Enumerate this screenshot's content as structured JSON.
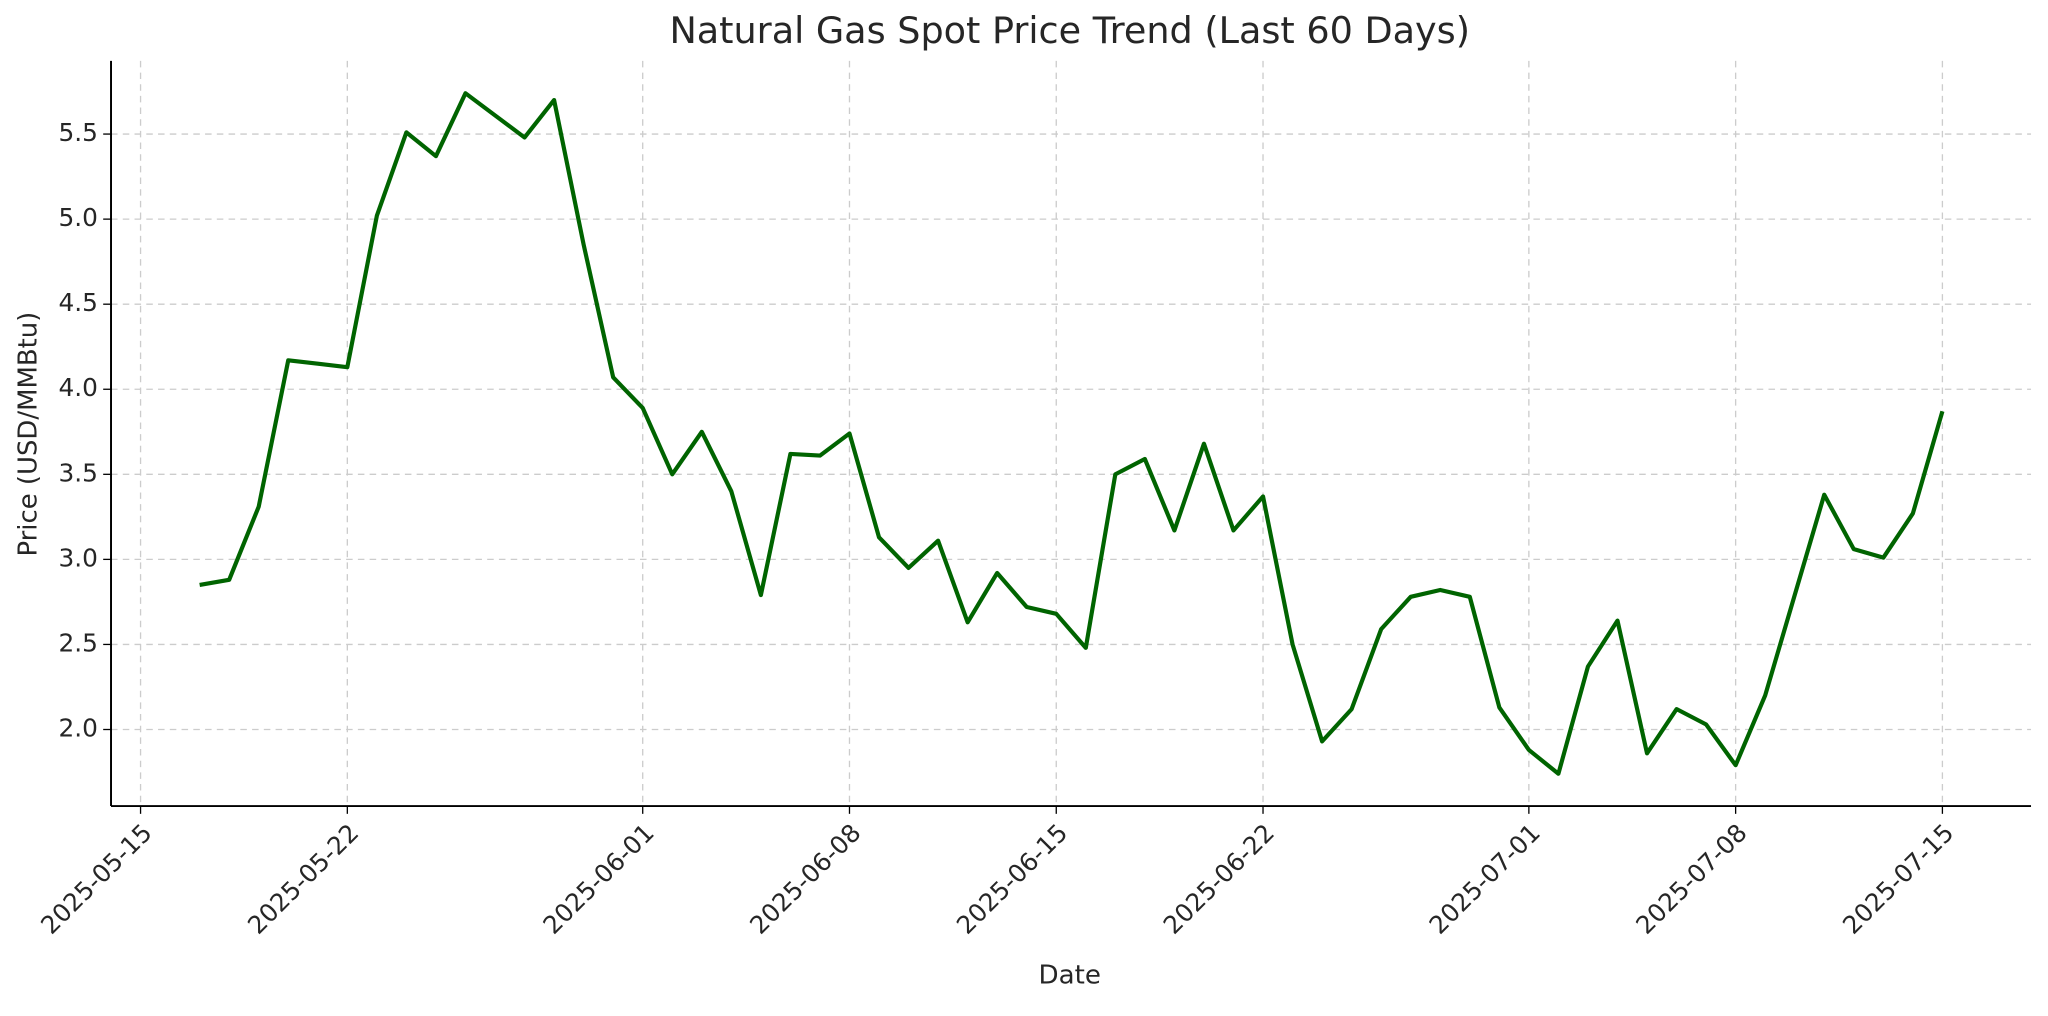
{
  "chart_data": {
    "type": "line",
    "title": "Natural Gas Spot Price Trend (Last 60 Days)",
    "x_label": "Date",
    "y_label": "Price (USD/MMBtu)",
    "x": [
      "2025-05-17",
      "2025-05-18",
      "2025-05-19",
      "2025-05-20",
      "2025-05-21",
      "2025-05-22",
      "2025-05-23",
      "2025-05-24",
      "2025-05-25",
      "2025-05-26",
      "2025-05-27",
      "2025-05-28",
      "2025-05-29",
      "2025-05-30",
      "2025-05-31",
      "2025-06-01",
      "2025-06-02",
      "2025-06-03",
      "2025-06-04",
      "2025-06-05",
      "2025-06-06",
      "2025-06-07",
      "2025-06-08",
      "2025-06-09",
      "2025-06-10",
      "2025-06-11",
      "2025-06-12",
      "2025-06-13",
      "2025-06-14",
      "2025-06-15",
      "2025-06-16",
      "2025-06-17",
      "2025-06-18",
      "2025-06-19",
      "2025-06-20",
      "2025-06-21",
      "2025-06-22",
      "2025-06-23",
      "2025-06-24",
      "2025-06-25",
      "2025-06-26",
      "2025-06-27",
      "2025-06-28",
      "2025-06-29",
      "2025-06-30",
      "2025-07-01",
      "2025-07-02",
      "2025-07-03",
      "2025-07-04",
      "2025-07-05",
      "2025-07-06",
      "2025-07-07",
      "2025-07-08",
      "2025-07-09",
      "2025-07-10",
      "2025-07-11",
      "2025-07-12",
      "2025-07-13",
      "2025-07-14",
      "2025-07-15"
    ],
    "values": [
      2.85,
      2.88,
      3.31,
      4.17,
      4.15,
      4.13,
      5.02,
      5.51,
      5.37,
      5.74,
      5.61,
      5.48,
      5.7,
      4.85,
      4.07,
      3.89,
      3.5,
      3.75,
      3.4,
      2.79,
      3.62,
      3.61,
      3.74,
      3.13,
      2.95,
      3.11,
      2.63,
      2.92,
      2.72,
      2.68,
      2.48,
      3.5,
      3.59,
      3.17,
      3.68,
      3.17,
      3.37,
      2.5,
      1.93,
      2.12,
      2.59,
      2.78,
      2.82,
      2.78,
      2.13,
      1.88,
      1.74,
      2.37,
      2.64,
      1.86,
      2.12,
      2.03,
      1.79,
      2.2,
      2.79,
      3.38,
      3.06,
      3.01,
      3.27,
      3.87
    ],
    "color": "#006400",
    "xlim": [
      "2025-05-14",
      "2025-07-18"
    ],
    "xticks": [
      "2025-05-15",
      "2025-05-22",
      "2025-06-01",
      "2025-06-08",
      "2025-06-15",
      "2025-06-22",
      "2025-07-01",
      "2025-07-08",
      "2025-07-15"
    ],
    "ylim": [
      1.55,
      5.93
    ],
    "yticks": [
      {
        "value": 2,
        "label": "2.0"
      },
      {
        "value": 2.5,
        "label": "2.5"
      },
      {
        "value": 3,
        "label": "3.0"
      },
      {
        "value": 3.5,
        "label": "3.5"
      },
      {
        "value": 4,
        "label": "4.0"
      },
      {
        "value": 4.5,
        "label": "4.5"
      },
      {
        "value": 5,
        "label": "5.0"
      },
      {
        "value": 5.5,
        "label": "5.5"
      }
    ],
    "grid": true
  }
}
